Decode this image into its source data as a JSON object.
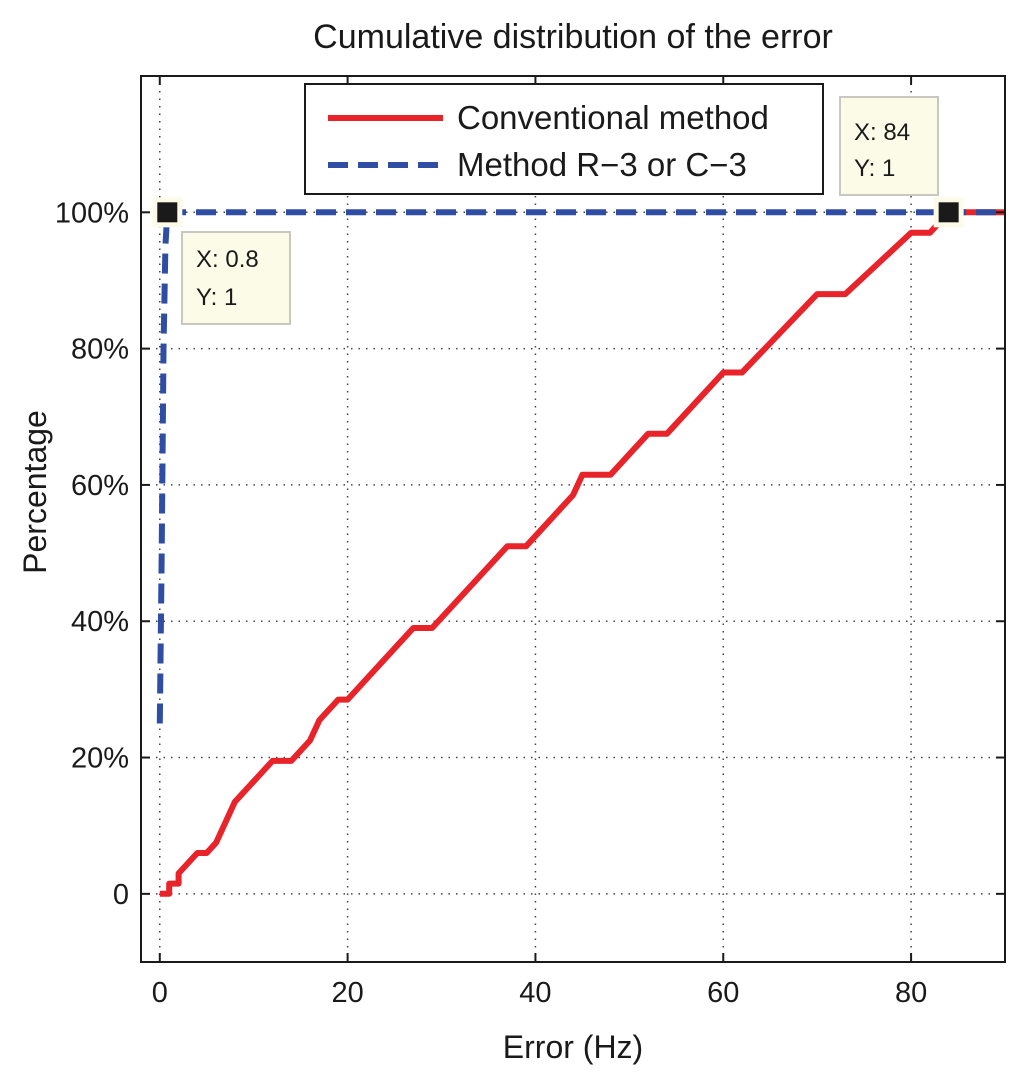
{
  "chart_data": {
    "type": "line",
    "title": "Cumulative distribution of the error",
    "xlabel": "Error (Hz)",
    "ylabel": "Percentage",
    "xlim": [
      -2,
      90
    ],
    "ylim": [
      -0.1,
      1.2
    ],
    "grid": true,
    "legend_position": "top-center",
    "x_ticks": [
      {
        "value": 0,
        "label": "0"
      },
      {
        "value": 20,
        "label": "20"
      },
      {
        "value": 40,
        "label": "40"
      },
      {
        "value": 60,
        "label": "60"
      },
      {
        "value": 80,
        "label": "80"
      }
    ],
    "y_ticks": [
      {
        "value": 0,
        "label": "0"
      },
      {
        "value": 0.2,
        "label": "20%"
      },
      {
        "value": 0.4,
        "label": "40%"
      },
      {
        "value": 0.6,
        "label": "60%"
      },
      {
        "value": 0.8,
        "label": "80%"
      },
      {
        "value": 1.0,
        "label": "100%"
      }
    ],
    "series": [
      {
        "name": "Conventional method",
        "color": "#e8242a",
        "style": "solid",
        "x": [
          0,
          1,
          1,
          2,
          2,
          4,
          5,
          6,
          8,
          12,
          14,
          16,
          17,
          19,
          20,
          27,
          29,
          37,
          39,
          44,
          45,
          48,
          52,
          54,
          60,
          62,
          70,
          73,
          80,
          82,
          84,
          90
        ],
        "y": [
          0,
          0,
          0.015,
          0.015,
          0.03,
          0.06,
          0.06,
          0.075,
          0.135,
          0.195,
          0.195,
          0.225,
          0.255,
          0.285,
          0.285,
          0.39,
          0.39,
          0.51,
          0.51,
          0.585,
          0.615,
          0.615,
          0.675,
          0.675,
          0.765,
          0.765,
          0.88,
          0.88,
          0.97,
          0.97,
          1.0,
          1.0
        ]
      },
      {
        "name": "Method R−3 or C−3",
        "color": "#2f4ea3",
        "style": "dashed",
        "x": [
          0,
          0.2,
          0.4,
          0.6,
          0.8,
          90
        ],
        "y": [
          0.25,
          0.5,
          0.8,
          0.95,
          1.0,
          1.0
        ]
      }
    ],
    "datatips": [
      {
        "x": 0.8,
        "y": 1,
        "x_text": "X: 0.8",
        "y_text": "Y: 1"
      },
      {
        "x": 84,
        "y": 1,
        "x_text": "X: 84",
        "y_text": "Y: 1"
      }
    ]
  }
}
